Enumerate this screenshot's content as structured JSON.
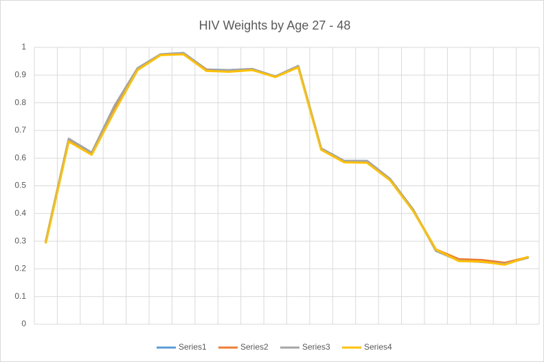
{
  "chart_data": {
    "type": "line",
    "title": "HIV Weights by Age 27 - 48",
    "categories": [
      null,
      null,
      null,
      null,
      null,
      null,
      null,
      null,
      null,
      null,
      null,
      null,
      null,
      null,
      null,
      null,
      null,
      null,
      null,
      null,
      null,
      null
    ],
    "series": [
      {
        "name": "Series1",
        "color": "#5b9bd5",
        "values": [
          0.3,
          0.67,
          0.62,
          0.79,
          0.925,
          0.975,
          0.98,
          0.92,
          0.918,
          0.922,
          0.895,
          0.933,
          0.635,
          0.59,
          0.59,
          0.525,
          0.415,
          0.265,
          0.23,
          0.225,
          0.218,
          0.24
        ]
      },
      {
        "name": "Series2",
        "color": "#ed7d31",
        "values": [
          0.295,
          0.665,
          0.615,
          0.78,
          0.92,
          0.975,
          0.978,
          0.92,
          0.915,
          0.92,
          0.893,
          0.93,
          0.632,
          0.588,
          0.588,
          0.523,
          0.413,
          0.27,
          0.235,
          0.232,
          0.222,
          0.242
        ]
      },
      {
        "name": "Series3",
        "color": "#a5a5a5",
        "values": [
          0.3,
          0.67,
          0.62,
          0.79,
          0.925,
          0.975,
          0.98,
          0.918,
          0.918,
          0.922,
          0.895,
          0.933,
          0.635,
          0.59,
          0.59,
          0.525,
          0.415,
          0.265,
          0.23,
          0.225,
          0.218,
          0.24
        ]
      },
      {
        "name": "Series4",
        "color": "#ffc000",
        "values": [
          0.295,
          0.66,
          0.612,
          0.77,
          0.918,
          0.972,
          0.975,
          0.915,
          0.912,
          0.918,
          0.893,
          0.928,
          0.63,
          0.585,
          0.583,
          0.52,
          0.41,
          0.27,
          0.228,
          0.226,
          0.215,
          0.243
        ]
      }
    ],
    "ylim": [
      0,
      1
    ],
    "yticks": [
      0,
      0.1,
      0.2,
      0.3,
      0.4,
      0.5,
      0.6,
      0.7,
      0.8,
      0.9,
      1
    ],
    "grid": true,
    "legend": "bottom"
  }
}
